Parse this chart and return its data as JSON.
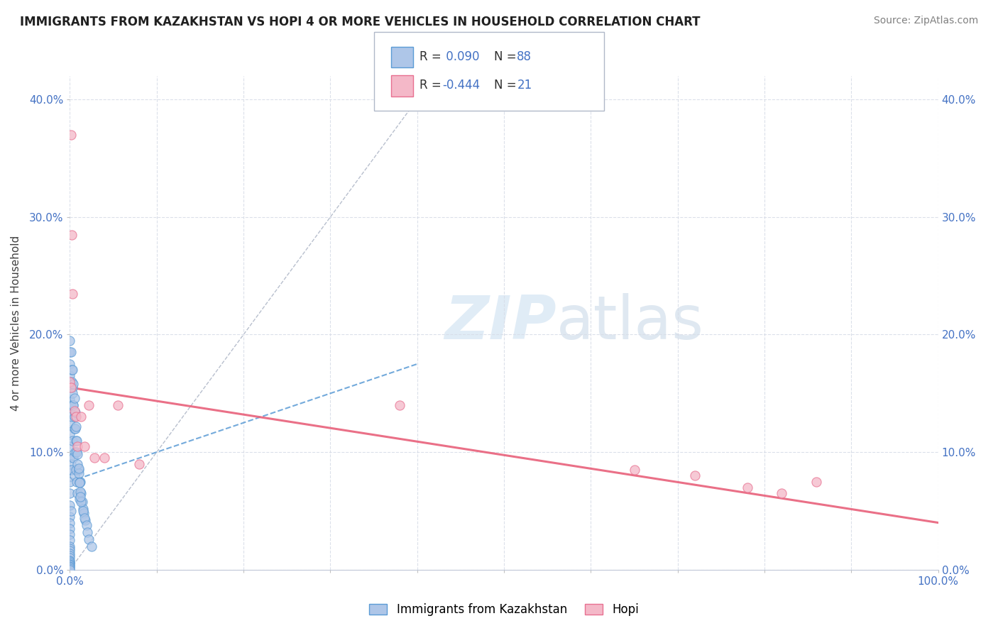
{
  "title": "IMMIGRANTS FROM KAZAKHSTAN VS HOPI 4 OR MORE VEHICLES IN HOUSEHOLD CORRELATION CHART",
  "source": "Source: ZipAtlas.com",
  "ylabel": "4 or more Vehicles in Household",
  "xmin": 0.0,
  "xmax": 1.0,
  "ymin": 0.0,
  "ymax": 0.42,
  "x_ticks": [
    0.0,
    0.1,
    0.2,
    0.3,
    0.4,
    0.5,
    0.6,
    0.7,
    0.8,
    0.9,
    1.0
  ],
  "x_tick_labels_bottom": [
    "0.0%",
    "",
    "",
    "",
    "",
    "",
    "",
    "",
    "",
    "",
    "100.0%"
  ],
  "y_ticks": [
    0.0,
    0.1,
    0.2,
    0.3,
    0.4
  ],
  "y_tick_labels_left": [
    "0.0%",
    "10.0%",
    "20.0%",
    "30.0%",
    "40.0%"
  ],
  "y_tick_labels_right": [
    "0.0%",
    "10.0%",
    "20.0%",
    "30.0%",
    "40.0%"
  ],
  "r_blue": 0.09,
  "n_blue": 88,
  "r_pink": -0.444,
  "n_pink": 21,
  "blue_fill_color": "#aec6e8",
  "blue_edge_color": "#5b9bd5",
  "pink_fill_color": "#f4b8c8",
  "pink_edge_color": "#e87090",
  "blue_trend_color": "#5b9bd5",
  "pink_trend_color": "#e8607a",
  "diagonal_color": "#b0b8c8",
  "grid_color": "#d8dde8",
  "tick_label_color": "#4472c4",
  "blue_scatter_x": [
    0.0,
    0.0,
    0.0,
    0.0,
    0.0,
    0.0,
    0.0,
    0.0,
    0.0,
    0.0,
    0.0,
    0.0,
    0.0,
    0.0,
    0.0,
    0.0,
    0.0,
    0.0,
    0.0,
    0.0,
    0.0,
    0.0,
    0.0,
    0.0,
    0.0,
    0.0,
    0.0,
    0.0,
    0.0,
    0.0,
    0.0,
    0.0,
    0.0,
    0.0,
    0.0,
    0.001,
    0.001,
    0.001,
    0.001,
    0.002,
    0.002,
    0.002,
    0.003,
    0.003,
    0.004,
    0.004,
    0.005,
    0.005,
    0.006,
    0.007,
    0.008,
    0.009,
    0.01,
    0.011,
    0.012,
    0.013,
    0.014,
    0.015,
    0.016,
    0.018,
    0.002,
    0.003,
    0.004,
    0.005,
    0.006,
    0.007,
    0.008,
    0.009,
    0.01,
    0.011,
    0.012,
    0.013,
    0.015,
    0.017,
    0.019,
    0.02,
    0.022,
    0.025,
    0.003,
    0.004,
    0.005,
    0.006,
    0.007,
    0.008,
    0.009,
    0.01,
    0.011,
    0.012
  ],
  "blue_scatter_y": [
    0.195,
    0.185,
    0.175,
    0.165,
    0.155,
    0.145,
    0.135,
    0.125,
    0.115,
    0.105,
    0.095,
    0.085,
    0.075,
    0.065,
    0.055,
    0.045,
    0.04,
    0.035,
    0.03,
    0.025,
    0.02,
    0.018,
    0.016,
    0.014,
    0.012,
    0.01,
    0.008,
    0.007,
    0.006,
    0.005,
    0.004,
    0.003,
    0.002,
    0.001,
    0.0,
    0.185,
    0.14,
    0.09,
    0.05,
    0.17,
    0.13,
    0.085,
    0.155,
    0.11,
    0.14,
    0.095,
    0.12,
    0.08,
    0.1,
    0.085,
    0.075,
    0.065,
    0.085,
    0.06,
    0.075,
    0.065,
    0.058,
    0.052,
    0.048,
    0.042,
    0.16,
    0.15,
    0.14,
    0.13,
    0.12,
    0.11,
    0.1,
    0.09,
    0.082,
    0.074,
    0.066,
    0.058,
    0.05,
    0.044,
    0.038,
    0.032,
    0.026,
    0.02,
    0.17,
    0.158,
    0.146,
    0.134,
    0.122,
    0.11,
    0.098,
    0.086,
    0.074,
    0.062
  ],
  "pink_scatter_x": [
    0.001,
    0.002,
    0.003,
    0.005,
    0.007,
    0.009,
    0.013,
    0.017,
    0.022,
    0.028,
    0.04,
    0.055,
    0.08,
    0.38,
    0.65,
    0.72,
    0.78,
    0.82,
    0.86,
    0.0,
    0.001
  ],
  "pink_scatter_y": [
    0.37,
    0.285,
    0.235,
    0.135,
    0.13,
    0.105,
    0.13,
    0.105,
    0.14,
    0.095,
    0.095,
    0.14,
    0.09,
    0.14,
    0.085,
    0.08,
    0.07,
    0.065,
    0.075,
    0.16,
    0.155
  ],
  "pink_trend_x0": 0.0,
  "pink_trend_y0": 0.155,
  "pink_trend_x1": 1.0,
  "pink_trend_y1": 0.04,
  "blue_trend_x0": 0.0,
  "blue_trend_y0": 0.075,
  "blue_trend_x1": 0.4,
  "blue_trend_y1": 0.175
}
